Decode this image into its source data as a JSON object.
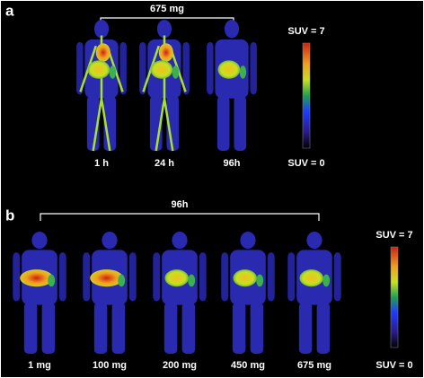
{
  "panel_a": {
    "label": "a",
    "bracket_label": "675 mg",
    "images": [
      {
        "label": "1 h"
      },
      {
        "label": "24 h"
      },
      {
        "label": "96h"
      }
    ],
    "colorbar": {
      "max_label": "SUV = 7",
      "min_label": "SUV = 0"
    }
  },
  "panel_b": {
    "label": "b",
    "bracket_label": "96h",
    "images": [
      {
        "label": "1 mg"
      },
      {
        "label": "100 mg"
      },
      {
        "label": "200 mg"
      },
      {
        "label": "450 mg"
      },
      {
        "label": "675 mg"
      }
    ],
    "colorbar": {
      "max_label": "SUV = 7",
      "min_label": "SUV = 0"
    }
  }
}
